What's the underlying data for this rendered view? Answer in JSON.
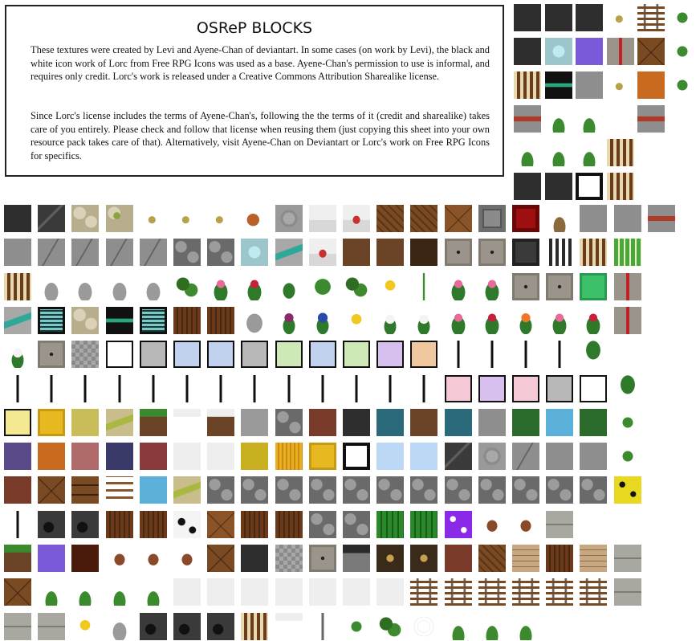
{
  "info": {
    "title": "OSReP BLOCKS",
    "paragraph1": "These textures were created by Levi and Ayene-Chan of deviantart. In some cases (on work by Levi), the black and white icon work of Lorc from Free RPG Icons was used as a base. Ayene-Chan's permission to use is informal, and requires only credit. Lorc's work is released under a Creative Commons Attribution Sharealike license.",
    "paragraph2": "Since Lorc's license includes the terms of Ayene-Chan's, following the the terms of it (credit and sharealike) takes care of you entirely. Please check and follow that license when reusing them (just copying this sheet into your own resource pack takes care of that). Alternatively, visit Ayene-Chan on Deviantart or Lorc's work on Free RPG Icons for specifics."
  },
  "palette": {
    "ink": "#111111",
    "stone": "#8a8a8a",
    "dark_stone": "#3a3a3a",
    "wood": "#6b3f22",
    "grass": "#3c8a2e",
    "leaf": "#2f7a2a",
    "sand": "#c9bd8c",
    "snow": "#eeeeee",
    "clay": "#a8624a",
    "water": "#3b6fb5"
  },
  "tile_rows": [
    [
      "obsidian-dark",
      "cracked-dark",
      "cobble-cream",
      "cobble-moss",
      "item-small",
      "item-small",
      "item-small",
      "item-rust",
      "stone-round",
      "snow-mound",
      "snow-red",
      "planks-diag",
      "planks-diag",
      "planks-diamond",
      "frame-stone",
      "block-red",
      "plant-dead",
      "stone-gray",
      "stone-gray",
      "brick-red"
    ],
    [
      "stone-gray",
      "stone-crack",
      "stone-crack",
      "stone-crack",
      "stone-crack",
      "cobble-gray",
      "cobble-gray",
      "diamond-ore",
      "emerald-ore",
      "snow-red",
      "dirt",
      "dirt",
      "dirt-dark",
      "stone-panel",
      "stone-panel",
      "iron-block",
      "iron-grate",
      "wood-grate",
      "bamboo"
    ],
    [
      "wood-grate",
      "plant-gray",
      "plant-gray",
      "plant-gray",
      "plant-gray",
      "leaves-vine",
      "flower-pink",
      "flower-red",
      "plant-green",
      "round-bush",
      "leaves-vine",
      "flower-yellow",
      "sprout",
      "flower-pink",
      "flower-pink",
      "stone-panel",
      "stone-panel",
      "emerald-block",
      "wall-lever"
    ],
    [
      "emerald-ore",
      "teal-grate",
      "cobble-cream",
      "eye-block",
      "teal-grate",
      "bark",
      "bark",
      "rock-gray",
      "flower-purple",
      "flower-blue",
      "flower-yellow",
      "flower-white",
      "flower-white",
      "flower-pink",
      "flower-red",
      "flower-orange",
      "flower-pink",
      "flower-red",
      "wall-lever"
    ],
    [
      "flower-white",
      "stone-panel",
      "checker",
      "diamond-white",
      "diamond-gray",
      "diamond-blue",
      "diamond-blue",
      "diamond-gray",
      "diamond-green",
      "diamond-blue",
      "diamond-green",
      "diamond-purple",
      "diamond-peach",
      "bar",
      "bar",
      "bar",
      "bar",
      "palm"
    ],
    [
      "bar",
      "bar",
      "bar",
      "bar",
      "bar",
      "bar",
      "bar",
      "bar",
      "bar",
      "bar",
      "bar",
      "bar",
      "bar",
      "diamond-pink",
      "diamond-purple",
      "diamond-pink",
      "diamond-gray",
      "diamond-white",
      "palm"
    ],
    [
      "diamond-yellow",
      "gold",
      "sand",
      "sand-green",
      "grass",
      "snow-top",
      "snow-grass",
      "gravel",
      "cobble-gray",
      "brick",
      "deepslate",
      "teal",
      "dirt",
      "teal",
      "stone-gray",
      "green",
      "water",
      "green",
      "vine"
    ],
    [
      "purple",
      "orange",
      "pink",
      "indigo",
      "clay",
      "snow",
      "snow",
      "olive",
      "hay",
      "gold",
      "frame-white",
      "ice",
      "ice",
      "cracked-dark",
      "stone-round",
      "stone-crack",
      "stone-gray",
      "stone-gray",
      "vine"
    ],
    [
      "brick",
      "planks-cross",
      "door",
      "ladder",
      "water",
      "sand-green",
      "cobble-gray",
      "cobble-gray",
      "cobble-gray",
      "cobble-gray",
      "cobble-gray",
      "cobble-gray",
      "cobble-gray",
      "cobble-gray",
      "cobble-gray",
      "cobble-gray",
      "cobble-gray",
      "cobble-gray",
      "sponge"
    ],
    [
      "bar",
      "coal-ore",
      "coal-ore",
      "bark",
      "bark",
      "cow-hide",
      "planks-diamond",
      "bark",
      "bark",
      "cobble-gray",
      "cobble-gray",
      "melon",
      "melon",
      "purple-dots",
      "mushroom",
      "mushroom",
      "stone-brick"
    ],
    [
      "grass",
      "amethyst",
      "netherrack",
      "mushroom",
      "mushroom",
      "mushroom",
      "planks-cross",
      "deepslate",
      "checker",
      "stone-panel",
      "furnace",
      "crafting",
      "crafting",
      "brick",
      "planks-diag",
      "planks",
      "bark",
      "planks",
      "stone-brick"
    ],
    [
      "planks-cross",
      "grass-tuft",
      "grass-tuft",
      "grass-tuft",
      "grass-tuft",
      "snow",
      "snow",
      "snow",
      "snow",
      "snow",
      "snow",
      "snow",
      "rail",
      "rail",
      "rail",
      "rail",
      "rail",
      "rail",
      "stone-brick"
    ],
    [
      "stone-brick",
      "stone-brick",
      "flower-yellow",
      "plant-gray",
      "coal-ore",
      "coal-ore",
      "coal-ore",
      "wood-grate",
      "snow-top",
      "lever",
      "vine",
      "leaves-vine",
      "web",
      "grass-tuft",
      "grass-tuft",
      "grass-tuft"
    ]
  ]
}
